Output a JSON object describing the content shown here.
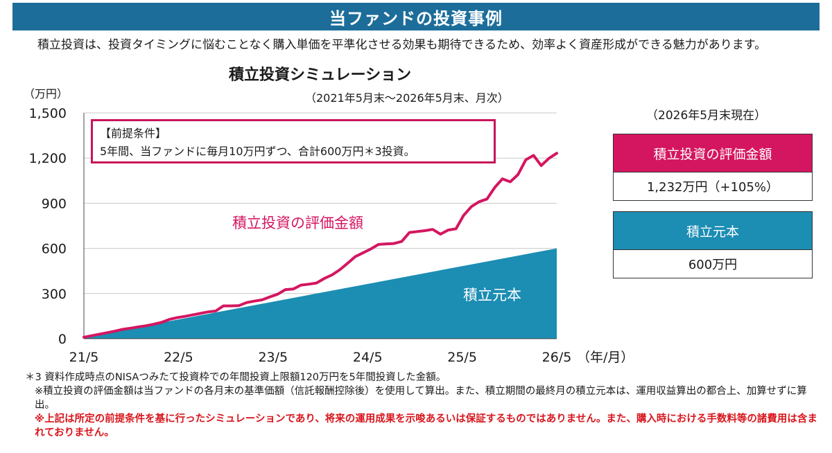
{
  "banner": {
    "title": "当ファンドの投資事例"
  },
  "intro": {
    "text": "積立投資は、投資タイミングに悩むことなく購入単価を平準化させる効果も期待できるため、効率よく資産形成ができる魅力があります。"
  },
  "chart_data": {
    "type": "line",
    "title": "積立投資シミュレーション",
    "subtitle": "（2021年5月末〜2026年5月末、月次）",
    "ylabel": "（万円）",
    "xlabel": "（年/月）",
    "ylim": [
      0,
      1500
    ],
    "yticks": [
      "0",
      "300",
      "600",
      "900",
      "1,200",
      "1,500"
    ],
    "xticks": [
      "21/5",
      "22/5",
      "23/5",
      "24/5",
      "25/5",
      "26/5"
    ],
    "grid": true,
    "series": [
      {
        "name": "積立投資の評価金額",
        "kind": "line",
        "color": "#d41660",
        "values": [
          10,
          20,
          30,
          40,
          50,
          62,
          70,
          78,
          86,
          96,
          108,
          128,
          140,
          148,
          158,
          168,
          178,
          184,
          218,
          218,
          220,
          240,
          250,
          258,
          278,
          296,
          326,
          330,
          356,
          362,
          370,
          400,
          424,
          458,
          500,
          545,
          570,
          596,
          626,
          630,
          632,
          646,
          706,
          712,
          718,
          726,
          695,
          722,
          730,
          820,
          878,
          910,
          928,
          1005,
          1062,
          1042,
          1090,
          1188,
          1218,
          1150,
          1198,
          1232
        ]
      },
      {
        "name": "積立元本",
        "kind": "area",
        "color": "#1c8db3",
        "values": [
          10,
          600
        ]
      }
    ],
    "annotation": {
      "heading": "【前提条件】",
      "body": "5年間、当ファンドに毎月10万円ずつ、合計600万円＊3投資。"
    }
  },
  "summary": {
    "asof": "（2026年5月末現在）",
    "valuation_label": "積立投資の評価金額",
    "valuation_value": "1,232万円（+105%）",
    "principal_label": "積立元本",
    "principal_value": "600万円"
  },
  "notes": {
    "n1": "＊3 資料作成時点のNISAつみたて投資枠での年間投資上限額120万円を5年間投資した金額。",
    "n2": "※積立投資の評価金額は当ファンドの各月末の基準価額（信託報酬控除後）を使用して算出。また、積立期間の最終月の積立元本は、運用収益算出の都合上、加算せずに算出。",
    "n3": "※上記は所定の前提条件を基に行ったシミュレーションであり、将来の運用成果を示唆あるいは保証するものではありません。また、購入時における手数料等の諸費用は含まれておりません。"
  },
  "colors": {
    "banner": "#1d6d9a",
    "line": "#d41660",
    "area": "#1c8db3"
  }
}
